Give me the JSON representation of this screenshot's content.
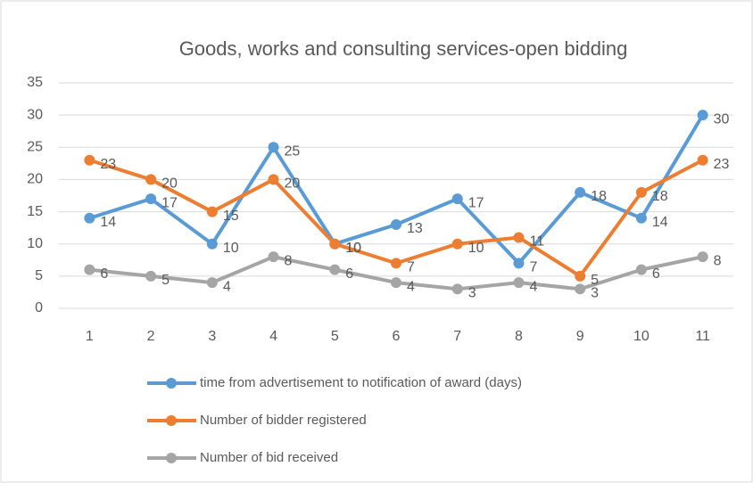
{
  "chart_data": {
    "type": "line",
    "title": "Goods, works and consulting services-open bidding",
    "categories": [
      "1",
      "2",
      "3",
      "4",
      "5",
      "6",
      "7",
      "8",
      "9",
      "10",
      "11"
    ],
    "series": [
      {
        "name": "time from advertisement to notification of award (days)",
        "color": "#5b9bd5",
        "values": [
          14,
          17,
          10,
          25,
          10,
          13,
          17,
          7,
          18,
          14,
          30
        ]
      },
      {
        "name": "Number of bidder registered",
        "color": "#ed7d31",
        "values": [
          23,
          20,
          15,
          20,
          10,
          7,
          10,
          11,
          5,
          18,
          23
        ]
      },
      {
        "name": "Number of bid received",
        "color": "#a5a5a5",
        "values": [
          6,
          5,
          4,
          8,
          6,
          4,
          3,
          4,
          3,
          6,
          8
        ]
      }
    ],
    "ylim": [
      0,
      35
    ],
    "yticks": [
      0,
      5,
      10,
      15,
      20,
      25,
      30,
      35
    ],
    "grid": true,
    "legend": "bottom"
  }
}
